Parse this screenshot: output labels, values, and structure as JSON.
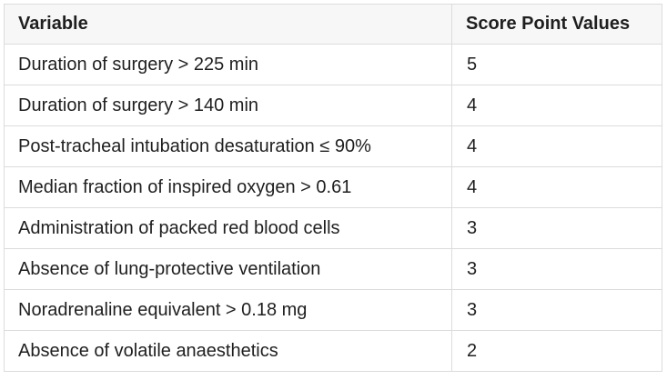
{
  "table": {
    "headers": [
      "Variable",
      "Score Point Values"
    ],
    "rows": [
      {
        "variable": "Duration of surgery > 225 min",
        "score": "5"
      },
      {
        "variable": "Duration of surgery > 140 min",
        "score": "4"
      },
      {
        "variable": "Post-tracheal intubation desaturation ≤ 90%",
        "score": "4"
      },
      {
        "variable": "Median fraction of inspired oxygen > 0.61",
        "score": "4"
      },
      {
        "variable": "Administration of packed red blood cells",
        "score": "3"
      },
      {
        "variable": "Absence of lung-protective ventilation",
        "score": "3"
      },
      {
        "variable": "Noradrenaline equivalent > 0.18 mg",
        "score": "3"
      },
      {
        "variable": "Absence of volatile anaesthetics",
        "score": "2"
      }
    ]
  }
}
